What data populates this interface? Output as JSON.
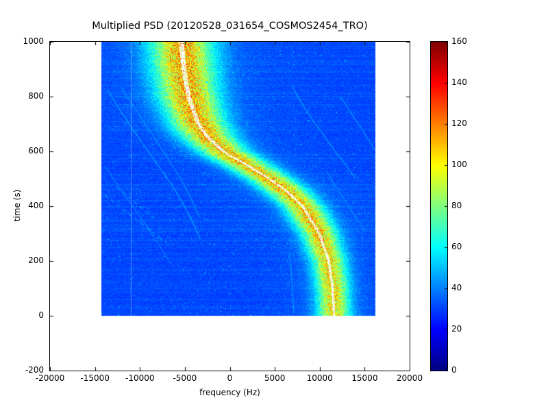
{
  "figure": {
    "background": "#ffffff",
    "frame_color": "#000000"
  },
  "chart_data": {
    "type": "heatmap",
    "title": "Multiplied PSD (20120528_031654_COSMOS2454_TRO)",
    "xlabel": "frequency (Hz)",
    "ylabel": "time (s)",
    "xlim": [
      -20000,
      20000
    ],
    "ylim": [
      -200,
      1000
    ],
    "xticks": [
      -20000,
      -15000,
      -10000,
      -5000,
      0,
      5000,
      10000,
      15000,
      20000
    ],
    "xtick_labels": [
      "-20000",
      "-15000",
      "-10000",
      "-5000",
      "0",
      "5000",
      "10000",
      "15000",
      "20000"
    ],
    "yticks": [
      -200,
      0,
      200,
      400,
      600,
      800,
      1000
    ],
    "ytick_labels": [
      "-200",
      "0",
      "200",
      "400",
      "600",
      "800",
      "1000"
    ],
    "grid": false,
    "colormap": "jet",
    "colorbar": {
      "vmin": 0,
      "vmax": 160,
      "ticks": [
        0,
        20,
        40,
        60,
        80,
        100,
        120,
        140,
        160
      ],
      "tick_labels": [
        "0",
        "20",
        "40",
        "60",
        "80",
        "100",
        "120",
        "140",
        "160"
      ],
      "position": "right"
    },
    "data_extent": {
      "freq_min": -14300,
      "freq_max": 16200,
      "time_min": 0,
      "time_max": 1000
    },
    "background_noise": {
      "base": 26,
      "spread": 9,
      "speckle_prob": 0.015,
      "speckle_boost": 28
    },
    "doppler_band": {
      "description": "S-shaped satellite Doppler track, bright yellow-green band with thin white core over blue noise background",
      "core_halfwidth_hz": 200,
      "core_color": "#f8fcfa",
      "control_points": [
        {
          "t": 0,
          "fc": 11600,
          "sigma": 1250,
          "peak": 66
        },
        {
          "t": 100,
          "fc": 11450,
          "sigma": 1250,
          "peak": 67
        },
        {
          "t": 200,
          "fc": 11000,
          "sigma": 1300,
          "peak": 68
        },
        {
          "t": 300,
          "fc": 9950,
          "sigma": 1400,
          "peak": 70
        },
        {
          "t": 400,
          "fc": 8100,
          "sigma": 1550,
          "peak": 71
        },
        {
          "t": 450,
          "fc": 6500,
          "sigma": 1650,
          "peak": 71
        },
        {
          "t": 500,
          "fc": 4400,
          "sigma": 1750,
          "peak": 71
        },
        {
          "t": 550,
          "fc": 1900,
          "sigma": 1850,
          "peak": 71
        },
        {
          "t": 600,
          "fc": -700,
          "sigma": 1950,
          "peak": 72
        },
        {
          "t": 650,
          "fc": -2400,
          "sigma": 2050,
          "peak": 73
        },
        {
          "t": 700,
          "fc": -3500,
          "sigma": 2150,
          "peak": 74
        },
        {
          "t": 800,
          "fc": -4600,
          "sigma": 2300,
          "peak": 75
        },
        {
          "t": 900,
          "fc": -5100,
          "sigma": 2400,
          "peak": 75
        },
        {
          "t": 1000,
          "fc": -5400,
          "sigma": 2450,
          "peak": 75
        }
      ]
    },
    "artifacts": {
      "vertical_line_freq": -11000,
      "arcs": [
        {
          "points": [
            [
              825,
              -13600
            ],
            [
              760,
              -12400
            ],
            [
              690,
              -11000
            ],
            [
              620,
              -9500
            ],
            [
              550,
              -8000
            ],
            [
              480,
              -6500
            ],
            [
              410,
              -5200
            ],
            [
              340,
              -4100
            ],
            [
              280,
              -3300
            ]
          ],
          "intensity": 52
        },
        {
          "points": [
            [
              830,
              -12000
            ],
            [
              770,
              -10800
            ],
            [
              700,
              -9400
            ],
            [
              630,
              -8000
            ],
            [
              560,
              -6600
            ],
            [
              490,
              -5300
            ],
            [
              420,
              -4200
            ],
            [
              360,
              -3400
            ]
          ],
          "intensity": 48
        },
        {
          "points": [
            [
              545,
              -13900
            ],
            [
              470,
              -12300
            ],
            [
              395,
              -10700
            ],
            [
              320,
              -9100
            ],
            [
              250,
              -7700
            ],
            [
              190,
              -6600
            ]
          ],
          "intensity": 45
        },
        {
          "points": [
            [
              840,
              6900
            ],
            [
              780,
              7900
            ],
            [
              720,
              9100
            ],
            [
              660,
              10400
            ],
            [
              600,
              11700
            ],
            [
              545,
              13000
            ],
            [
              500,
              14000
            ]
          ],
          "intensity": 52
        },
        {
          "points": [
            [
              800,
              12300
            ],
            [
              745,
              13400
            ],
            [
              690,
              14500
            ],
            [
              640,
              15500
            ],
            [
              605,
              16100
            ]
          ],
          "intensity": 50
        },
        {
          "points": [
            [
              230,
              6600
            ],
            [
              160,
              6850
            ],
            [
              90,
              7000
            ],
            [
              10,
              7100
            ]
          ],
          "intensity": 48
        },
        {
          "points": [
            [
              520,
              10900
            ],
            [
              455,
              12100
            ],
            [
              395,
              13300
            ],
            [
              345,
              14300
            ],
            [
              310,
              15000
            ]
          ],
          "intensity": 46
        }
      ],
      "dashed_segments": [
        {
          "points": [
            [
              440,
              -13900
            ],
            [
              265,
              -7000
            ]
          ],
          "intensity": 50
        },
        {
          "points": [
            [
              470,
              -12600
            ],
            [
              350,
              -8200
            ]
          ],
          "intensity": 48
        }
      ]
    }
  }
}
